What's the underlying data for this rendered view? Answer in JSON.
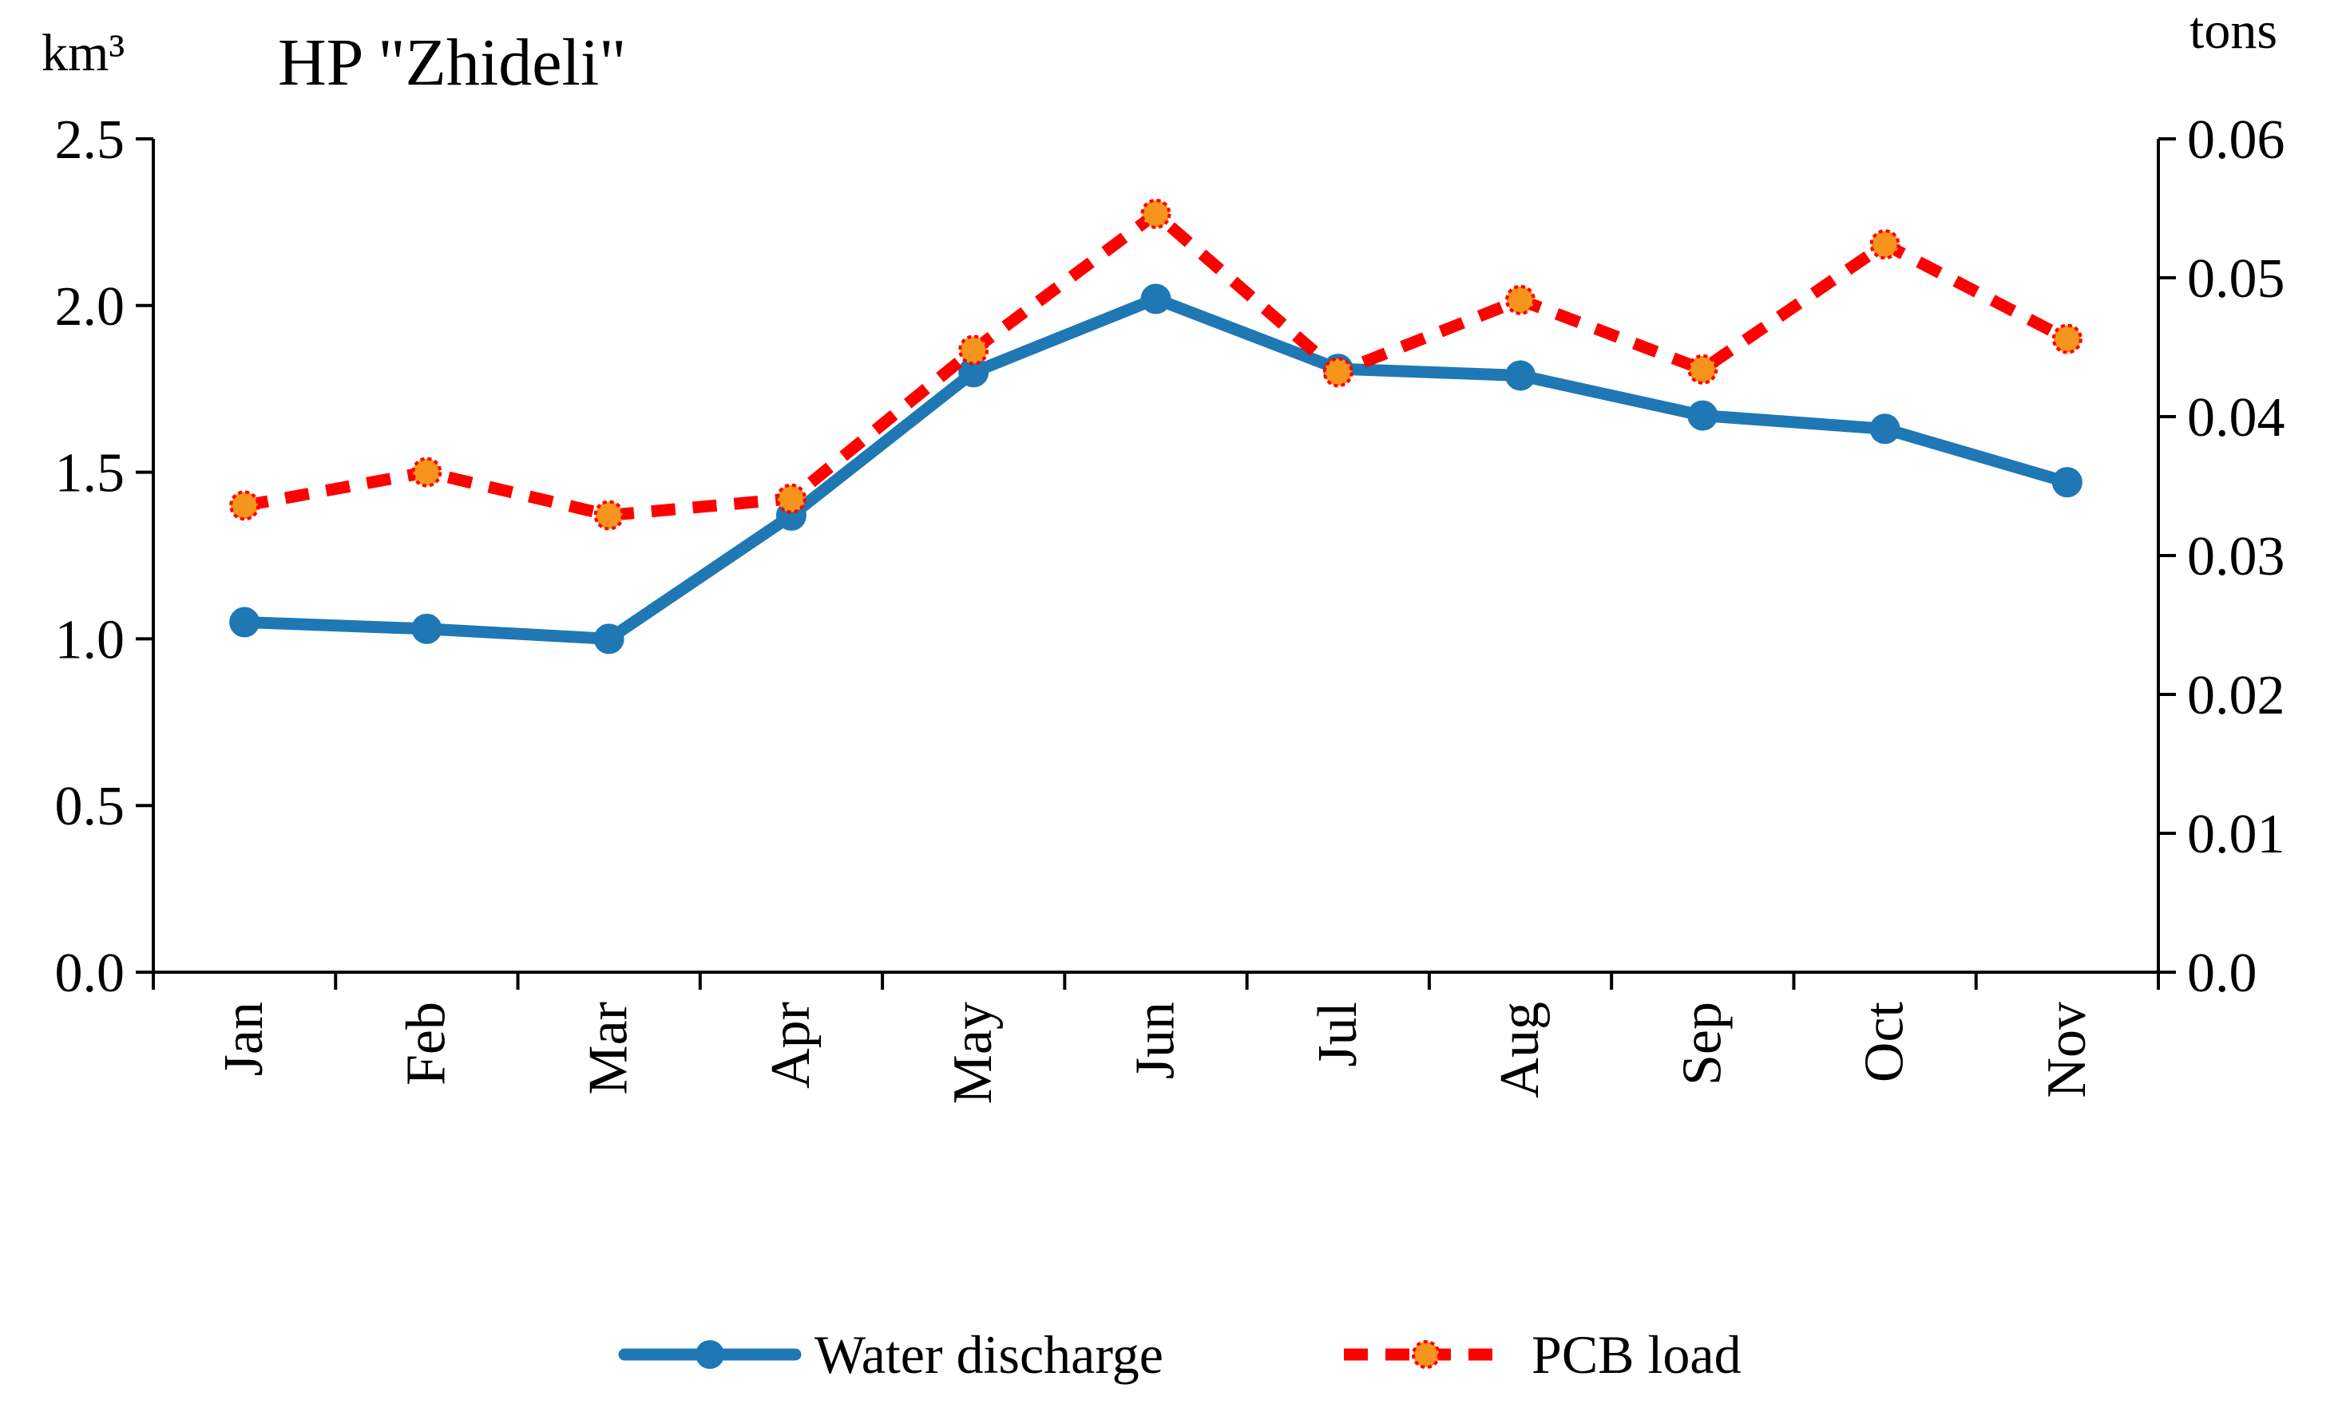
{
  "chart_data": {
    "type": "line",
    "title": "HP \"Zhideli\"",
    "y_left_unit": "km³",
    "y_right_unit": "tons",
    "categories": [
      "Jan",
      "Feb",
      "Mar",
      "Apr",
      "May",
      "Jun",
      "Jul",
      "Aug",
      "Sep",
      "Oct",
      "Nov"
    ],
    "y_left": {
      "lim": [
        0,
        2.5
      ],
      "ticks": [
        "0.0",
        "0.5",
        "1.0",
        "1.5",
        "2.0",
        "2.5"
      ]
    },
    "y_right": {
      "lim": [
        0,
        0.06
      ],
      "ticks": [
        "0.0",
        "0.01",
        "0.02",
        "0.03",
        "0.04",
        "0.05",
        "0.06"
      ]
    },
    "series": [
      {
        "name": "Water discharge",
        "axis": "left",
        "color": "#1f78b4",
        "style": "solid",
        "values": [
          1.05,
          1.03,
          1.0,
          1.37,
          1.8,
          2.02,
          1.81,
          1.79,
          1.67,
          1.63,
          1.47
        ]
      },
      {
        "name": "PCB load",
        "axis": "right",
        "color": "#ff0000",
        "marker_color": "#f7941d",
        "style": "dashed",
        "values": [
          0.0336,
          0.036,
          0.0329,
          0.0341,
          0.0448,
          0.0546,
          0.0432,
          0.0484,
          0.0434,
          0.0524,
          0.0456
        ]
      }
    ],
    "grid": false,
    "legend": "bottom-center"
  }
}
